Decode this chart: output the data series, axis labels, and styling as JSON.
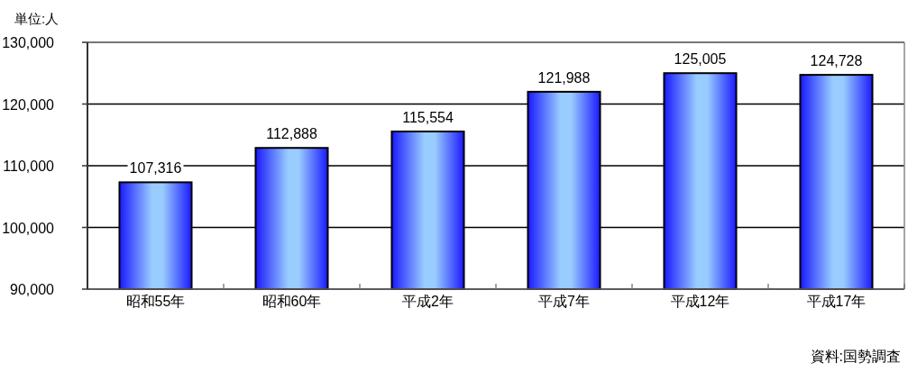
{
  "chart_data": {
    "type": "bar",
    "ylabel": "単位:人",
    "annotations": [
      "資料:国勢調査"
    ],
    "categories": [
      "昭和55年",
      "昭和60年",
      "平成2年",
      "平成7年",
      "平成12年",
      "平成17年"
    ],
    "values": [
      107316,
      112888,
      115554,
      121988,
      125005,
      124728
    ],
    "value_labels": [
      "107,316",
      "112,888",
      "115,554",
      "121,988",
      "125,005",
      "124,728"
    ],
    "color": "#1a1aff",
    "ylim": [
      90000,
      130000
    ],
    "yticks": [
      {
        "value": 90000,
        "label": "90,000"
      },
      {
        "value": 100000,
        "label": "100,000"
      },
      {
        "value": 110000,
        "label": "110,000"
      },
      {
        "value": 120000,
        "label": "120,000"
      },
      {
        "value": 130000,
        "label": "130,000"
      }
    ],
    "grid": "y"
  }
}
